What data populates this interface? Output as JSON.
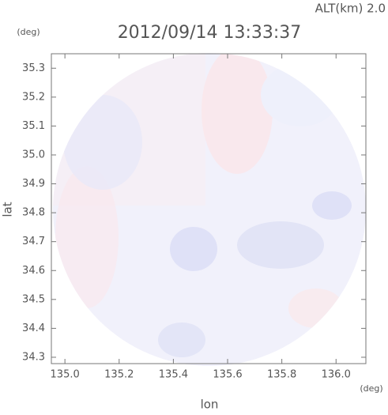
{
  "chart_data": {
    "type": "radar-map",
    "title": "2012/09/14 13:33:37",
    "subtitle": "ALT(km) 2.0",
    "y_unit": "(deg)",
    "x_unit": "(deg)",
    "x_label": "lon",
    "y_label": "lat",
    "xlim": [
      134.95,
      136.11
    ],
    "ylim": [
      34.278,
      35.35
    ],
    "xticks": [
      {
        "value": 135.0,
        "label": "135.0"
      },
      135.2,
      135.4,
      135.6,
      135.8,
      {
        "value": 136.0,
        "label": "136.0"
      }
    ],
    "yticks": [
      34.3,
      34.4,
      34.5,
      34.6,
      34.7,
      34.8,
      34.9,
      {
        "value": 35.0,
        "label": "35.0"
      },
      35.1,
      35.2,
      35.3
    ]
  }
}
